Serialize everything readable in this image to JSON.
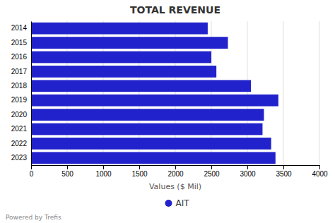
{
  "chart_data": {
    "type": "bar",
    "orientation": "horizontal",
    "title": "TOTAL REVENUE",
    "categories": [
      "2014",
      "2015",
      "2016",
      "2017",
      "2018",
      "2019",
      "2020",
      "2021",
      "2022",
      "2023"
    ],
    "series": [
      {
        "name": "AIT",
        "color": "#2222cc",
        "values": [
          2450,
          2730,
          2500,
          2570,
          3050,
          3430,
          3230,
          3210,
          3330,
          3390
        ]
      }
    ],
    "xlabel": "Values ($ Mil)",
    "xlim": [
      0,
      4000
    ],
    "xticks": [
      0,
      500,
      1000,
      1500,
      2000,
      2500,
      3000,
      3500,
      4000
    ],
    "grid": true,
    "legend": "bottom",
    "annotations": [
      "Powered by Trefis"
    ]
  }
}
